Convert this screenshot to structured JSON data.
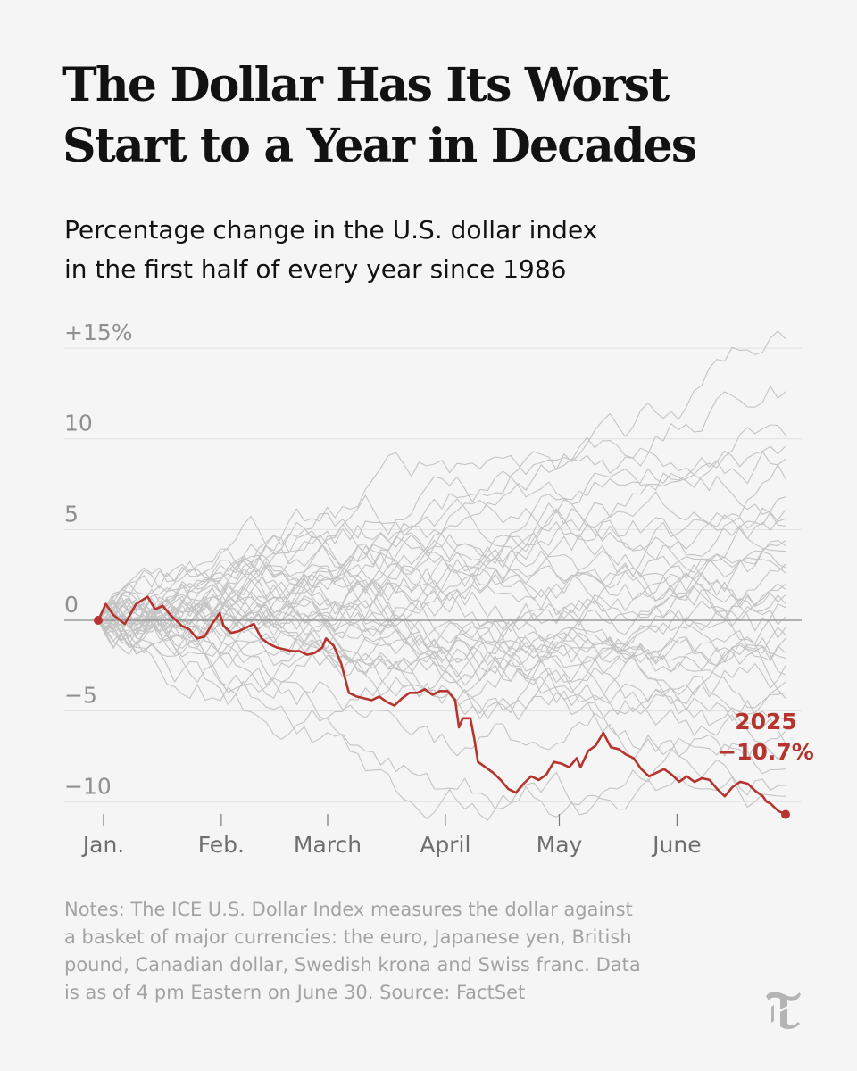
{
  "header": {
    "title_lines": [
      "The Dollar Has Its Worst",
      "Start to a Year in Decades"
    ],
    "subtitle_lines": [
      "Percentage change in the U.S. dollar index",
      "in the first half of every year since 1986"
    ]
  },
  "footer": {
    "notes_lines": [
      "Notes: The ICE U.S. Dollar Index measures the dollar against",
      "a basket of major currencies: the euro, Japanese yen, British",
      "pound, Canadian dollar, Swedish krona and Swiss franc. Data",
      "is as of 4 pm Eastern on June 30. Source: FactSet"
    ],
    "logo_icon": "nyt-t-logo-icon"
  },
  "colors": {
    "highlight": "#b5342d",
    "background_lines": "#c4c4c4",
    "gridline": "#e2e2e2",
    "zero_line": "#8a8a8a",
    "background": "#f5f5f6"
  },
  "chart_data": {
    "type": "line",
    "title": "The Dollar Has Its Worst Start to a Year in Decades",
    "subtitle": "Percentage change in the U.S. dollar index in the first half of every year since 1986",
    "x_unit": "day of year",
    "xlim": [
      1,
      182
    ],
    "ylim": [
      -11,
      16
    ],
    "y_ticks": [
      {
        "value": 15,
        "label": "+15%"
      },
      {
        "value": 10,
        "label": "10"
      },
      {
        "value": 5,
        "label": "5"
      },
      {
        "value": 0,
        "label": "0"
      },
      {
        "value": -5,
        "label": "−5"
      },
      {
        "value": -10,
        "label": "−10"
      }
    ],
    "x_ticks": [
      {
        "value": 1,
        "label": "Jan."
      },
      {
        "value": 32,
        "label": "Feb."
      },
      {
        "value": 60,
        "label": "March"
      },
      {
        "value": 91,
        "label": "April"
      },
      {
        "value": 121,
        "label": "May"
      },
      {
        "value": 152,
        "label": "June"
      }
    ],
    "grid": true,
    "background_series_count": 39,
    "background_series_endpoints": [
      15.5,
      10.2,
      9.6,
      8.9,
      7.8,
      6.1,
      5.2,
      4.4,
      3.8,
      3.1,
      2.6,
      2.0,
      1.4,
      0.7,
      0.2,
      -0.4,
      -1.0,
      -1.8,
      -2.5,
      -3.4,
      -4.3,
      -5.5,
      -6.8,
      -8.2,
      -9.7,
      12.6,
      6.8,
      5.6,
      4.1,
      2.9,
      1.7,
      0.9,
      -0.8,
      -2.1,
      -3.0,
      -4.0,
      -6.1,
      -7.4,
      -9.1
    ],
    "highlight": {
      "name": "2025",
      "end_label": "−10.7%",
      "points": [
        [
          1,
          0
        ],
        [
          3,
          0.9
        ],
        [
          5,
          0.3
        ],
        [
          8,
          -0.2
        ],
        [
          11,
          0.9
        ],
        [
          14,
          1.3
        ],
        [
          16,
          0.6
        ],
        [
          18,
          0.8
        ],
        [
          20,
          0.3
        ],
        [
          23,
          -0.3
        ],
        [
          25,
          -0.5
        ],
        [
          27,
          -1.0
        ],
        [
          29,
          -0.9
        ],
        [
          31,
          -0.2
        ],
        [
          33,
          0.4
        ],
        [
          34,
          -0.3
        ],
        [
          36,
          -0.7
        ],
        [
          38,
          -0.6
        ],
        [
          40,
          -0.4
        ],
        [
          42,
          -0.2
        ],
        [
          44,
          -1.0
        ],
        [
          46,
          -1.3
        ],
        [
          48,
          -1.5
        ],
        [
          50,
          -1.6
        ],
        [
          52,
          -1.7
        ],
        [
          54,
          -1.7
        ],
        [
          56,
          -1.9
        ],
        [
          58,
          -1.8
        ],
        [
          60,
          -1.5
        ],
        [
          61,
          -1.0
        ],
        [
          63,
          -1.4
        ],
        [
          65,
          -2.4
        ],
        [
          67,
          -4.0
        ],
        [
          69,
          -4.2
        ],
        [
          71,
          -4.3
        ],
        [
          73,
          -4.4
        ],
        [
          75,
          -4.2
        ],
        [
          77,
          -4.5
        ],
        [
          79,
          -4.7
        ],
        [
          81,
          -4.3
        ],
        [
          83,
          -4.0
        ],
        [
          85,
          -4.0
        ],
        [
          87,
          -3.8
        ],
        [
          89,
          -4.1
        ],
        [
          91,
          -3.9
        ],
        [
          93,
          -3.9
        ],
        [
          95,
          -4.4
        ],
        [
          96,
          -5.9
        ],
        [
          97,
          -5.4
        ],
        [
          99,
          -5.4
        ],
        [
          100,
          -6.5
        ],
        [
          101,
          -7.8
        ],
        [
          103,
          -8.1
        ],
        [
          105,
          -8.4
        ],
        [
          107,
          -8.8
        ],
        [
          109,
          -9.3
        ],
        [
          111,
          -9.5
        ],
        [
          113,
          -9.0
        ],
        [
          115,
          -8.6
        ],
        [
          117,
          -8.8
        ],
        [
          119,
          -8.5
        ],
        [
          121,
          -7.8
        ],
        [
          123,
          -7.9
        ],
        [
          125,
          -8.1
        ],
        [
          127,
          -7.6
        ],
        [
          128,
          -8.1
        ],
        [
          130,
          -7.2
        ],
        [
          132,
          -6.9
        ],
        [
          134,
          -6.2
        ],
        [
          136,
          -7.0
        ],
        [
          138,
          -7.1
        ],
        [
          140,
          -7.4
        ],
        [
          142,
          -7.6
        ],
        [
          144,
          -8.2
        ],
        [
          146,
          -8.6
        ],
        [
          148,
          -8.4
        ],
        [
          150,
          -8.2
        ],
        [
          152,
          -8.5
        ],
        [
          154,
          -8.9
        ],
        [
          156,
          -8.6
        ],
        [
          158,
          -8.9
        ],
        [
          160,
          -8.7
        ],
        [
          162,
          -8.8
        ],
        [
          164,
          -9.3
        ],
        [
          166,
          -9.7
        ],
        [
          168,
          -9.2
        ],
        [
          170,
          -8.9
        ],
        [
          172,
          -9.0
        ],
        [
          174,
          -9.4
        ],
        [
          176,
          -9.7
        ],
        [
          177,
          -10.0
        ],
        [
          178,
          -10.1
        ],
        [
          180,
          -10.5
        ],
        [
          182,
          -10.7
        ]
      ]
    }
  }
}
